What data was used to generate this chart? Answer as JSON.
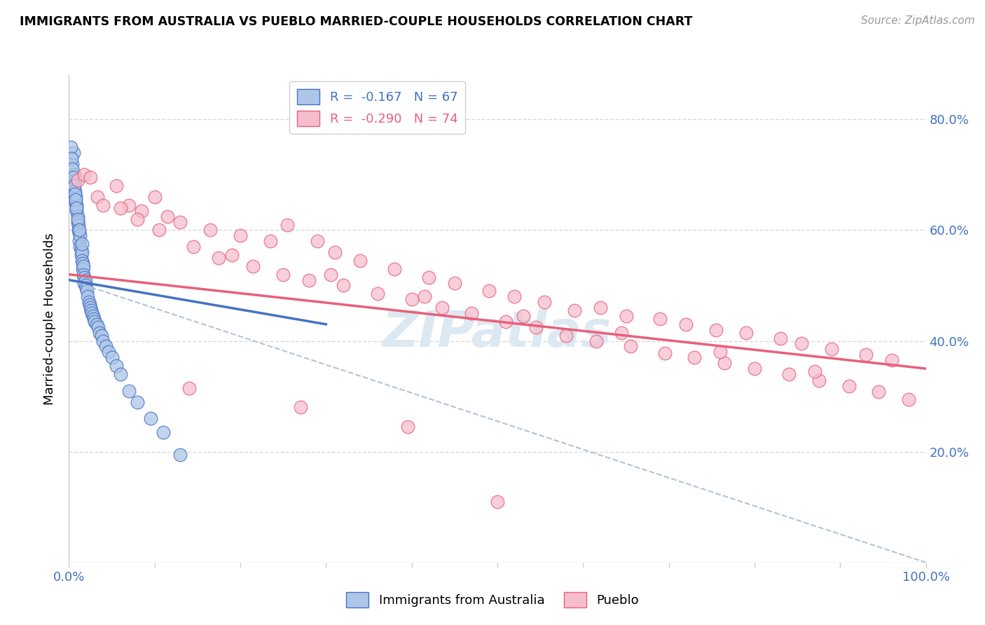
{
  "title": "IMMIGRANTS FROM AUSTRALIA VS PUEBLO MARRIED-COUPLE HOUSEHOLDS CORRELATION CHART",
  "source": "Source: ZipAtlas.com",
  "ylabel": "Married-couple Households",
  "legend_blue_r": "R =  -0.167",
  "legend_blue_n": "N = 67",
  "legend_pink_r": "R =  -0.290",
  "legend_pink_n": "N = 74",
  "legend_blue_label": "Immigrants from Australia",
  "legend_pink_label": "Pueblo",
  "blue_color": "#aec6e8",
  "pink_color": "#f5bece",
  "blue_line_color": "#4472C4",
  "pink_line_color": "#e8607a",
  "dashed_line_color": "#b0c4d8",
  "watermark": "ZIPatlas",
  "blue_scatter_x": [
    0.003,
    0.004,
    0.005,
    0.006,
    0.007,
    0.007,
    0.008,
    0.008,
    0.009,
    0.009,
    0.01,
    0.01,
    0.011,
    0.011,
    0.012,
    0.012,
    0.013,
    0.013,
    0.014,
    0.014,
    0.015,
    0.015,
    0.016,
    0.016,
    0.017,
    0.017,
    0.018,
    0.018,
    0.019,
    0.019,
    0.02,
    0.021,
    0.022,
    0.023,
    0.024,
    0.025,
    0.026,
    0.027,
    0.028,
    0.029,
    0.03,
    0.032,
    0.034,
    0.036,
    0.038,
    0.04,
    0.043,
    0.046,
    0.05,
    0.055,
    0.06,
    0.07,
    0.08,
    0.095,
    0.11,
    0.13,
    0.002,
    0.003,
    0.004,
    0.005,
    0.006,
    0.007,
    0.008,
    0.009,
    0.01,
    0.012,
    0.015
  ],
  "blue_scatter_y": [
    0.685,
    0.72,
    0.74,
    0.7,
    0.69,
    0.67,
    0.66,
    0.65,
    0.635,
    0.645,
    0.625,
    0.615,
    0.61,
    0.6,
    0.595,
    0.58,
    0.59,
    0.57,
    0.565,
    0.555,
    0.56,
    0.545,
    0.54,
    0.53,
    0.535,
    0.52,
    0.515,
    0.505,
    0.51,
    0.5,
    0.495,
    0.49,
    0.48,
    0.47,
    0.465,
    0.46,
    0.455,
    0.45,
    0.445,
    0.44,
    0.435,
    0.43,
    0.425,
    0.415,
    0.41,
    0.4,
    0.39,
    0.38,
    0.37,
    0.355,
    0.34,
    0.31,
    0.29,
    0.26,
    0.235,
    0.195,
    0.75,
    0.73,
    0.71,
    0.695,
    0.68,
    0.665,
    0.655,
    0.64,
    0.62,
    0.6,
    0.575
  ],
  "pink_scatter_x": [
    0.01,
    0.018,
    0.025,
    0.033,
    0.055,
    0.07,
    0.085,
    0.1,
    0.115,
    0.13,
    0.165,
    0.2,
    0.235,
    0.255,
    0.29,
    0.31,
    0.34,
    0.38,
    0.42,
    0.45,
    0.49,
    0.52,
    0.555,
    0.59,
    0.62,
    0.65,
    0.69,
    0.72,
    0.755,
    0.79,
    0.83,
    0.855,
    0.89,
    0.93,
    0.96,
    0.04,
    0.06,
    0.08,
    0.105,
    0.145,
    0.175,
    0.215,
    0.25,
    0.28,
    0.32,
    0.36,
    0.4,
    0.435,
    0.47,
    0.51,
    0.545,
    0.58,
    0.615,
    0.655,
    0.695,
    0.73,
    0.765,
    0.8,
    0.84,
    0.875,
    0.91,
    0.945,
    0.98,
    0.19,
    0.305,
    0.415,
    0.53,
    0.645,
    0.76,
    0.87,
    0.14,
    0.27,
    0.395,
    0.5
  ],
  "pink_scatter_y": [
    0.69,
    0.7,
    0.695,
    0.66,
    0.68,
    0.645,
    0.635,
    0.66,
    0.625,
    0.615,
    0.6,
    0.59,
    0.58,
    0.61,
    0.58,
    0.56,
    0.545,
    0.53,
    0.515,
    0.505,
    0.49,
    0.48,
    0.47,
    0.455,
    0.46,
    0.445,
    0.44,
    0.43,
    0.42,
    0.415,
    0.405,
    0.395,
    0.385,
    0.375,
    0.365,
    0.645,
    0.64,
    0.62,
    0.6,
    0.57,
    0.55,
    0.535,
    0.52,
    0.51,
    0.5,
    0.485,
    0.475,
    0.46,
    0.45,
    0.435,
    0.425,
    0.41,
    0.4,
    0.39,
    0.378,
    0.37,
    0.36,
    0.35,
    0.34,
    0.328,
    0.318,
    0.308,
    0.295,
    0.555,
    0.52,
    0.48,
    0.445,
    0.415,
    0.38,
    0.345,
    0.315,
    0.28,
    0.245,
    0.11
  ],
  "blue_trend_x": [
    0.0,
    0.3
  ],
  "blue_trend_y": [
    0.51,
    0.43
  ],
  "pink_trend_x": [
    0.0,
    1.0
  ],
  "pink_trend_y": [
    0.52,
    0.35
  ],
  "dashed_trend_x": [
    0.0,
    1.0
  ],
  "dashed_trend_y": [
    0.51,
    0.0
  ],
  "xlim": [
    0.0,
    1.0
  ],
  "ylim": [
    0.0,
    0.88
  ],
  "yticks": [
    0.2,
    0.4,
    0.6,
    0.8
  ],
  "ytick_labels": [
    "20.0%",
    "40.0%",
    "60.0%",
    "80.0%"
  ],
  "xticks": [
    0.0,
    0.1,
    0.2,
    0.3,
    0.4,
    0.5,
    0.6,
    0.7,
    0.8,
    0.9,
    1.0
  ],
  "xtick_edge_labels": [
    "0.0%",
    "100.0%"
  ]
}
